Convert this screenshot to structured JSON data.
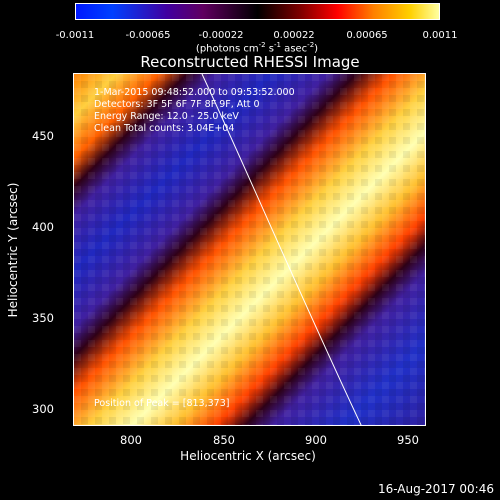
{
  "colorbar": {
    "ticks": [
      "-0.0011",
      "-0.00065",
      "-0.00022",
      "0.00022",
      "0.00065",
      "0.0011"
    ],
    "units_main": "(photons cm",
    "units_exp1": "-2",
    "units_mid": " s",
    "units_exp2": "-1",
    "units_mid2": " asec",
    "units_exp3": "-2",
    "units_end": ")"
  },
  "title": "Reconstructed RHESSI Image",
  "info": {
    "time_range": "1-Mar-2015 09:48:52.000 to 09:53:52.000",
    "detectors": "Detectors: 3F 5F 6F 7F 8F 9F, Att 0",
    "energy": "Energy Range: 12.0 - 25.0 keV",
    "algorithm": "Clean     Total counts: 3.04E+04",
    "peak": "Position of Peak = [813,373]"
  },
  "axes": {
    "xlabel": "Heliocentric X (arcsec)",
    "ylabel": "Heliocentric Y (arcsec)",
    "xticks": [
      "800",
      "850",
      "900",
      "950"
    ],
    "yticks": [
      "450",
      "400",
      "350",
      "300"
    ]
  },
  "timestamp": "16-Aug-2017 00:46",
  "colors": {
    "background": "#000000",
    "text": "#ffffff",
    "band_low": "#3020a0",
    "band_high": "#ffff80"
  }
}
